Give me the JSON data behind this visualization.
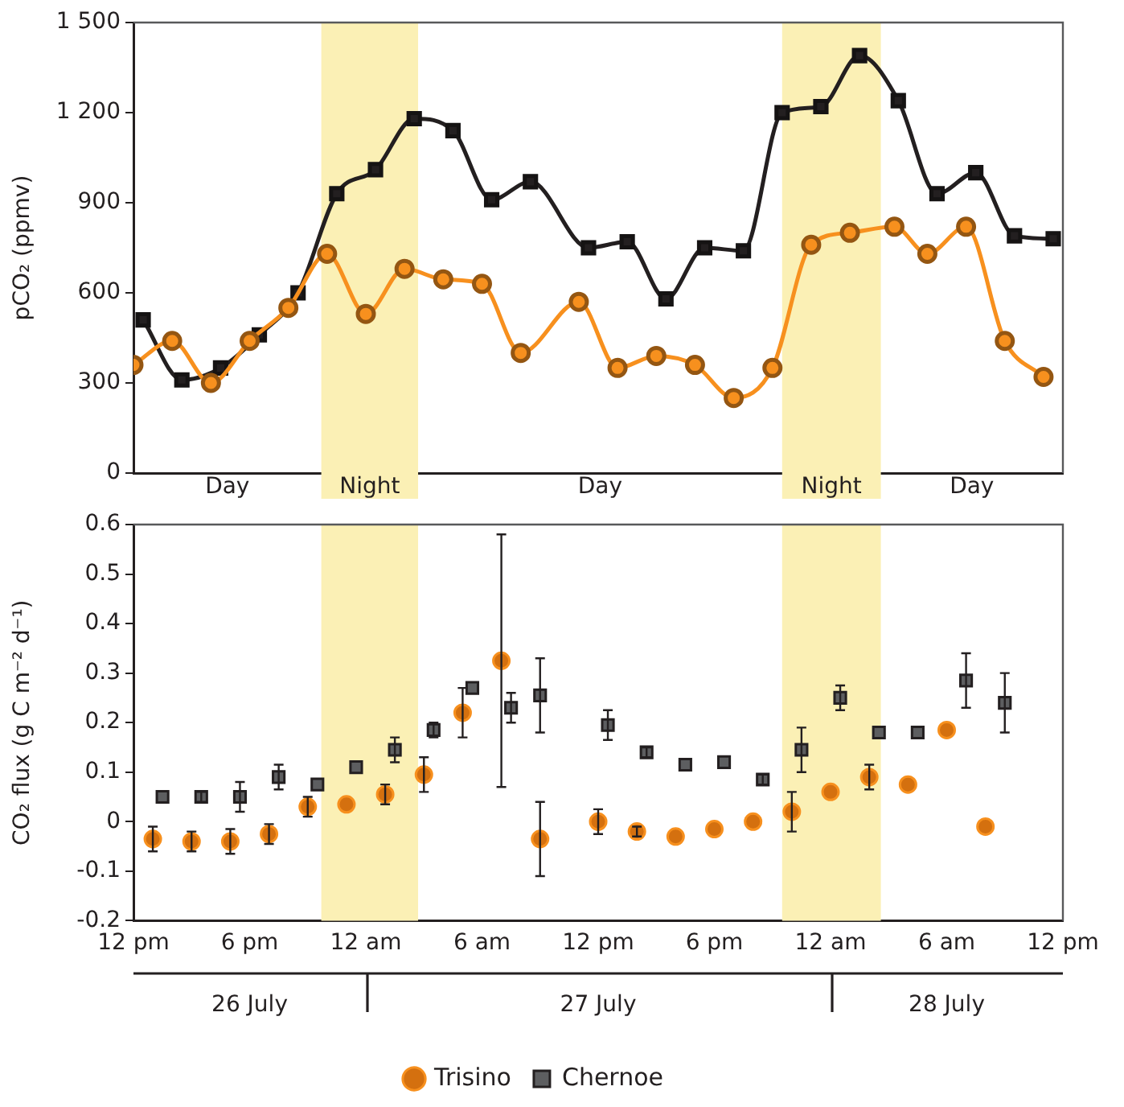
{
  "chart_data": [
    {
      "type": "line",
      "ylabel": "pCO₂ (ppmv)",
      "xlim": [
        "--07-26T12:00",
        "--07-28T12:00"
      ],
      "tick_labels": "y",
      "ylim": [
        0,
        1500
      ],
      "yticks": [
        0,
        300,
        600,
        900,
        {
          "value": 1200,
          "label": "1 200"
        },
        {
          "value": 1500,
          "label": "1 500"
        }
      ],
      "bands": [
        {
          "axis": "x",
          "from": "--07-26T21:42",
          "to": "--07-27T02:42",
          "label": "Night",
          "color": "#fbf0b5"
        },
        {
          "axis": "x",
          "from": "--07-27T21:30",
          "to": "--07-28T02:36",
          "label": "Night",
          "color": "#fbf0b5"
        }
      ],
      "annotations": [
        "Day",
        "Day",
        "Day"
      ],
      "series": [
        {
          "color": "#f7901e",
          "marker": "circle",
          "x": [
            "--07-26T12:00",
            "--07-26T14:00",
            "--07-26T16:00",
            "--07-26T18:00",
            "--07-26T20:00",
            "--07-26T22:00",
            "--07-27T00:00",
            "--07-27T02:00",
            "--07-27T04:00",
            "--07-27T06:00",
            "--07-27T08:00",
            "--07-27T11:00",
            "--07-27T13:00",
            "--07-27T15:00",
            "--07-27T17:00",
            "--07-27T19:00",
            "--07-27T21:00",
            "--07-27T23:00",
            "--07-28T01:00",
            "--07-28T03:18",
            "--07-28T05:00",
            "--07-28T07:00",
            "--07-28T09:00",
            "--07-28T11:00"
          ],
          "values": [
            360,
            440,
            300,
            440,
            550,
            730,
            530,
            680,
            645,
            630,
            400,
            570,
            350,
            390,
            360,
            250,
            350,
            760,
            800,
            820,
            730,
            820,
            440,
            320
          ]
        },
        {
          "color": "#231f20",
          "marker": "square",
          "x": [
            "--07-26T12:30",
            "--07-26T14:30",
            "--07-26T16:30",
            "--07-26T18:30",
            "--07-26T20:30",
            "--07-26T22:30",
            "--07-27T00:30",
            "--07-27T02:30",
            "--07-27T04:30",
            "--07-27T06:30",
            "--07-27T08:30",
            "--07-27T11:30",
            "--07-27T13:30",
            "--07-27T15:30",
            "--07-27T17:30",
            "--07-27T19:30",
            "--07-27T21:30",
            "--07-27T23:30",
            "--07-28T01:30",
            "--07-28T03:30",
            "--07-28T05:30",
            "--07-28T07:30",
            "--07-28T09:30",
            "--07-28T11:30"
          ],
          "values": [
            510,
            310,
            350,
            460,
            600,
            930,
            1010,
            1180,
            1140,
            910,
            970,
            750,
            770,
            580,
            750,
            740,
            1200,
            1220,
            1390,
            1240,
            930,
            1000,
            790,
            780
          ]
        }
      ]
    },
    {
      "type": "scatter",
      "ylabel": "CO₂ flux (g C m⁻² d⁻¹)",
      "xlim": [
        "--07-26T12:00",
        "--07-28T12:00"
      ],
      "xticks": [
        {
          "value": "--07-26T12:00",
          "label": "12 pm"
        },
        {
          "value": "--07-26T18:00",
          "label": "6 pm"
        },
        {
          "value": "--07-27",
          "label": "12 am"
        },
        {
          "value": "--07-27T06:00",
          "label": "6 am"
        },
        {
          "value": "--07-27T12:00",
          "label": "12 pm"
        },
        {
          "value": "--07-27T18:00",
          "label": "6 pm"
        },
        {
          "value": "--07-28",
          "label": "12 am"
        },
        {
          "value": "--07-28T06:00",
          "label": "6 am"
        },
        {
          "value": "--07-28T12:00",
          "label": "12 pm"
        }
      ],
      "x2lim": [
        "--07-26T12:00",
        "--07-28T12:00"
      ],
      "x2ticks": [
        {
          "value": "--07-26T18:00",
          "label": "26 July"
        },
        {
          "value": "--07-27T12:00",
          "label": "27 July"
        },
        {
          "value": "--07-28T06:00",
          "label": "28 July"
        }
      ],
      "ylim": [
        -0.2,
        0.6
      ],
      "yticks": [
        -0.2,
        -0.1,
        0,
        0.1,
        0.2,
        0.3,
        0.4,
        0.5,
        0.6
      ],
      "legend": "bottom",
      "bands": [
        {
          "axis": "x",
          "from": "--07-26T21:42",
          "to": "--07-27T02:42",
          "color": "#fbf0b5"
        },
        {
          "axis": "x",
          "from": "--07-27T21:30",
          "to": "--07-28T02:36",
          "color": "#fbf0b5"
        }
      ],
      "series": [
        {
          "name": "Trisino",
          "color": "#d4700f",
          "marker": "circle",
          "x": [
            "--07-26T13:00",
            "--07-26T15:00",
            "--07-26T17:00",
            "--07-26T19:00",
            "--07-26T21:00",
            "--07-26T23:00",
            "--07-27T01:00",
            "--07-27T03:00",
            "--07-27T05:00",
            "--07-27T07:00",
            "--07-27T09:00",
            "--07-27T12:00",
            "--07-27T14:00",
            "--07-27T16:00",
            "--07-27T18:00",
            "--07-27T20:00",
            "--07-27T22:00",
            "--07-28T00:00",
            "--07-28T02:00",
            "--07-28T04:00",
            "--07-28T06:00",
            "--07-28T08:00"
          ],
          "values": [
            -0.035,
            -0.04,
            -0.04,
            -0.025,
            0.03,
            0.035,
            0.055,
            0.095,
            0.22,
            0.325,
            -0.035,
            0,
            -0.02,
            -0.03,
            -0.015,
            0,
            0.02,
            0.06,
            0.09,
            0.075,
            0.185,
            -0.01
          ],
          "errors": [
            0.025,
            0.02,
            0.025,
            0.02,
            0.02,
            null,
            0.02,
            0.035,
            0.05,
            0.255,
            0.075,
            0.025,
            0.01,
            null,
            null,
            null,
            0.04,
            null,
            0.025,
            null,
            null,
            null
          ]
        },
        {
          "name": "Chernoe",
          "color": "#5d5e60",
          "marker": "square",
          "x": [
            "--07-26T13:30",
            "--07-26T15:30",
            "--07-26T17:30",
            "--07-26T19:30",
            "--07-26T21:30",
            "--07-26T23:30",
            "--07-27T01:30",
            "--07-27T03:30",
            "--07-27T05:30",
            "--07-27T07:30",
            "--07-27T09:00",
            "--07-27T12:30",
            "--07-27T14:30",
            "--07-27T16:30",
            "--07-27T18:30",
            "--07-27T20:30",
            "--07-27T22:30",
            "--07-28T00:30",
            "--07-28T02:30",
            "--07-28T04:30",
            "--07-28T07:00",
            "--07-28T09:00"
          ],
          "values": [
            0.05,
            0.05,
            0.05,
            0.09,
            0.075,
            0.11,
            0.145,
            0.185,
            0.27,
            0.23,
            0.255,
            0.195,
            0.14,
            0.115,
            0.12,
            0.085,
            0.145,
            0.25,
            0.18,
            0.18,
            0.285,
            0.24
          ],
          "errors": [
            null,
            0.01,
            0.03,
            0.025,
            null,
            null,
            0.025,
            0.015,
            null,
            0.03,
            0.075,
            0.03,
            0.01,
            null,
            null,
            0.01,
            0.045,
            0.025,
            null,
            null,
            0.055,
            0.06
          ]
        }
      ]
    }
  ]
}
